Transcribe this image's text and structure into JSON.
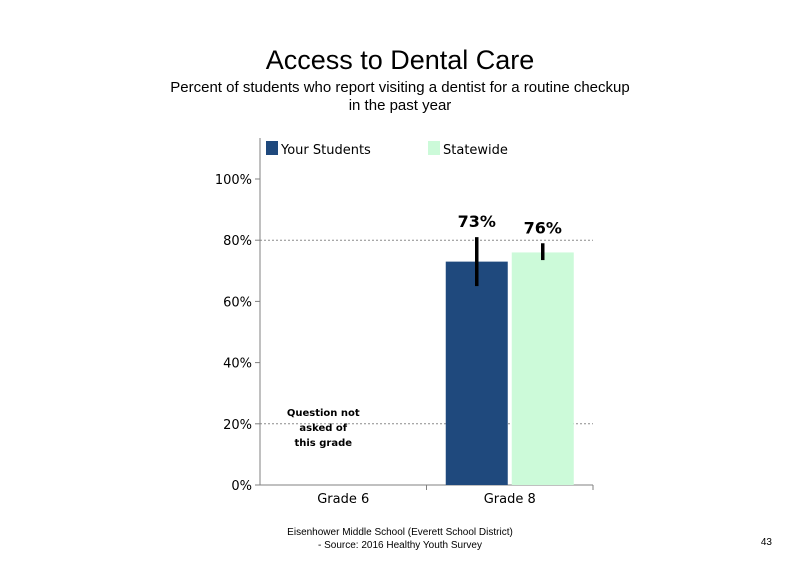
{
  "slide": {
    "title": "Access to Dental Care",
    "subtitle": "Percent of students who report visiting  a dentist  for a routine checkup in the past year",
    "footer_line1": "Eisenhower Middle School (Everett School District)",
    "footer_line2": "- Source: 2016 Healthy  Youth Survey",
    "page_number": "43"
  },
  "chart_data": {
    "type": "bar",
    "title": "",
    "xlabel": "",
    "ylabel": "",
    "categories": [
      "Grade 6",
      "Grade 8"
    ],
    "series": [
      {
        "name": "Your Students",
        "color": "#1f497d",
        "values": [
          null,
          73
        ],
        "value_labels": [
          "",
          "73%"
        ],
        "error_low": [
          null,
          65
        ],
        "error_high": [
          null,
          81
        ]
      },
      {
        "name": "Statewide",
        "color": "#ccfad9",
        "values": [
          null,
          76
        ],
        "value_labels": [
          "",
          "76%"
        ],
        "error_low": [
          null,
          73.5
        ],
        "error_high": [
          null,
          79
        ]
      }
    ],
    "ylim": [
      0,
      100
    ],
    "yticks": [
      0,
      20,
      40,
      60,
      80,
      100
    ],
    "ytick_labels": [
      "0%",
      "20%",
      "40%",
      "60%",
      "80%",
      "100%"
    ],
    "gridlines": [
      20,
      80
    ],
    "legend_position": "top",
    "annotation": {
      "category": "Grade 6",
      "lines": [
        "Question not",
        "asked of",
        "this grade"
      ]
    }
  }
}
